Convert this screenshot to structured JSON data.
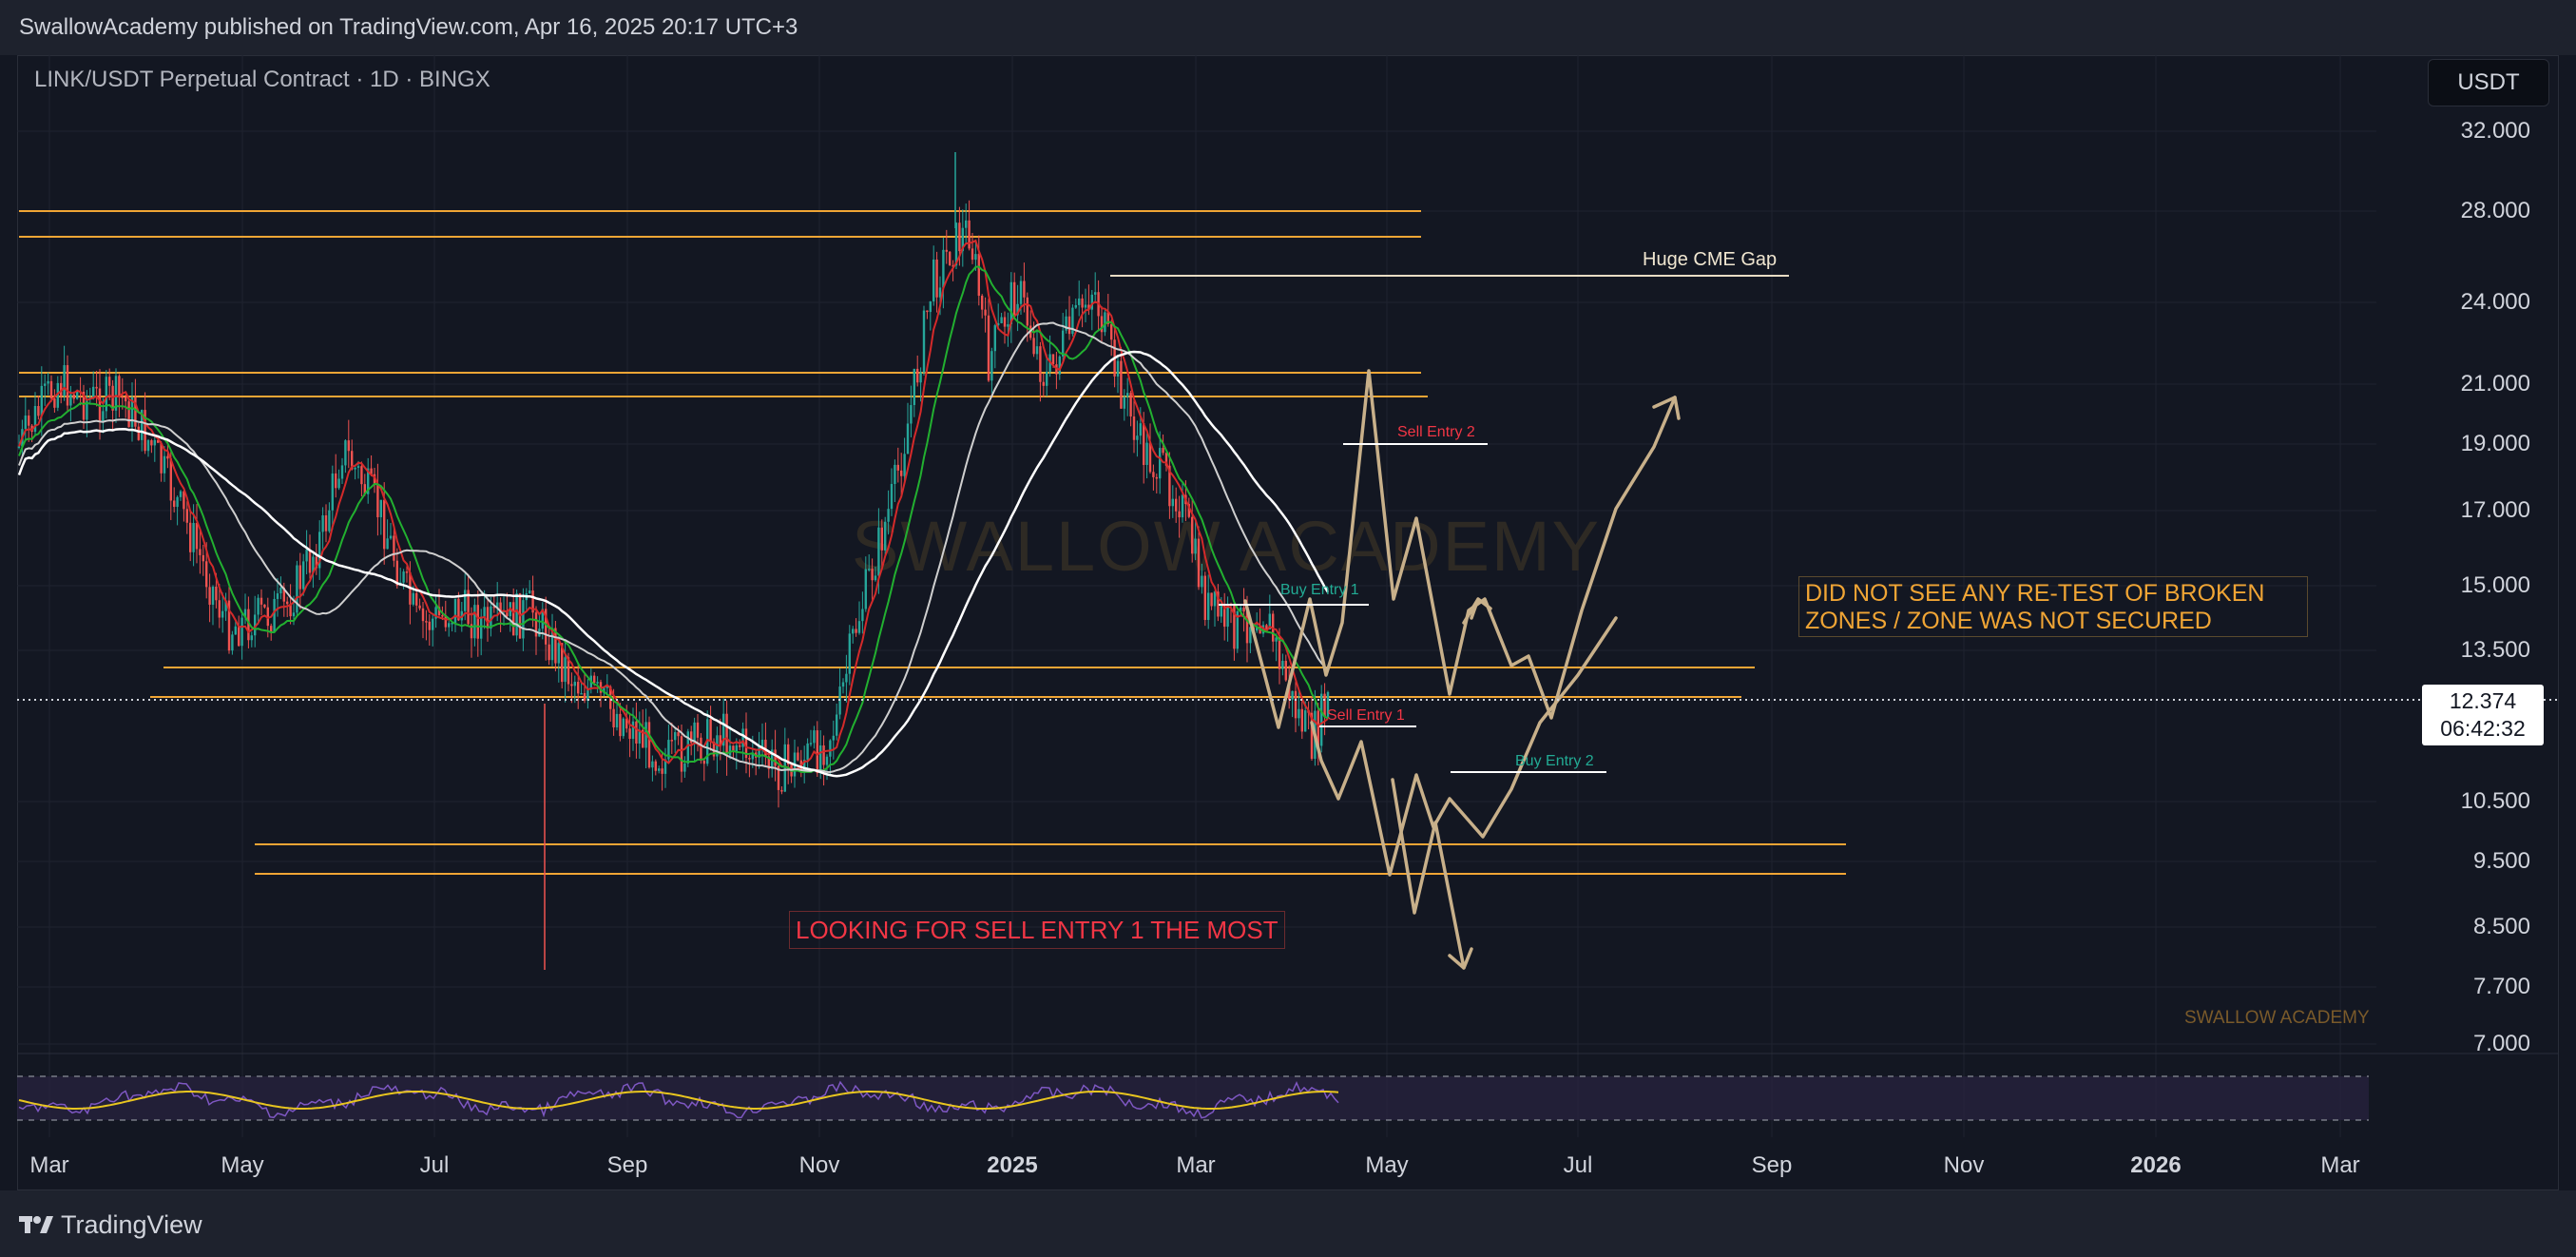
{
  "header": {
    "published_text": "SwallowAcademy published on TradingView.com, Apr 16, 2025 20:17 UTC+3"
  },
  "chart": {
    "symbol_title": "LINK/USDT Perpetual Contract · 1D · BINGX",
    "currency_button": "USDT",
    "last_price": "12.374",
    "countdown": "06:42:32",
    "watermark": "SWALLOW ACADEMY",
    "corner_watermark": "SWALLOW ACADEMY"
  },
  "price_axis": [
    "32.000",
    "28.000",
    "24.000",
    "21.000",
    "19.000",
    "17.000",
    "15.000",
    "13.500",
    "10.500",
    "9.500",
    "8.500",
    "7.700",
    "7.000"
  ],
  "time_axis": [
    {
      "label": "Mar",
      "bold": false
    },
    {
      "label": "May",
      "bold": false
    },
    {
      "label": "Jul",
      "bold": false
    },
    {
      "label": "Sep",
      "bold": false
    },
    {
      "label": "Nov",
      "bold": false
    },
    {
      "label": "2025",
      "bold": true
    },
    {
      "label": "Mar",
      "bold": false
    },
    {
      "label": "May",
      "bold": false
    },
    {
      "label": "Jul",
      "bold": false
    },
    {
      "label": "Sep",
      "bold": false
    },
    {
      "label": "Nov",
      "bold": false
    },
    {
      "label": "2026",
      "bold": true
    },
    {
      "label": "Mar",
      "bold": false
    }
  ],
  "annotations": {
    "cme_gap": "Huge CME Gap",
    "sell_entry_2": "Sell Entry 2",
    "buy_entry_1": "Buy Entry 1",
    "sell_entry_1": "Sell Entry 1",
    "buy_entry_2": "Buy Entry 2",
    "retest_line1": "DID NOT SEE ANY RE-TEST OF BROKEN",
    "retest_line2": "ZONES / ZONE WAS NOT SECURED",
    "looking_for": "LOOKING FOR SELL ENTRY 1 THE MOST"
  },
  "footer": {
    "brand": "TradingView"
  },
  "colors": {
    "background": "#131722",
    "zone_line": "#f0a535",
    "bull": "#26a69a",
    "bear": "#ef5350",
    "projection": "#c8b08a",
    "sell_text": "#f23645",
    "buy_text": "#22ab94",
    "rsi": "#7e57c2",
    "rsi_ma": "#e8c51f"
  }
}
